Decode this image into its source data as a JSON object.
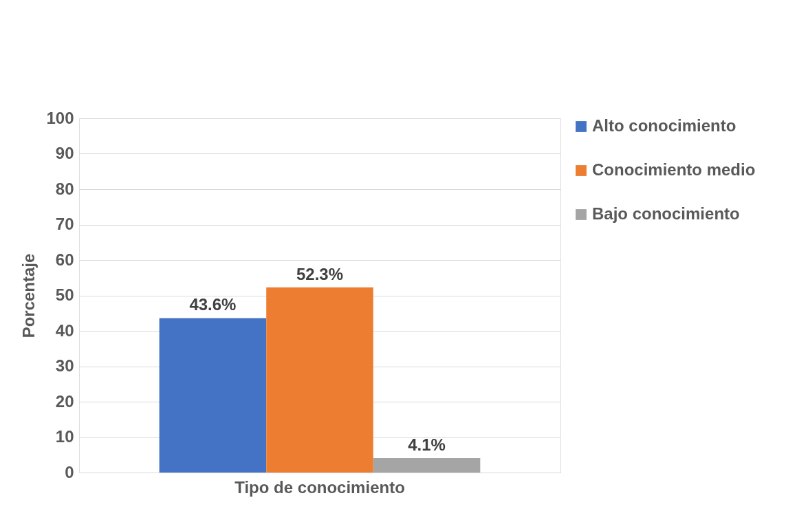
{
  "chart_data": {
    "type": "bar",
    "ylabel": "Porcentaje",
    "categories": [
      "Tipo de conocimiento"
    ],
    "series": [
      {
        "name": "Alto conocimiento",
        "color": "#4472c4",
        "values": [
          43.6
        ],
        "value_labels": [
          "43.6%"
        ]
      },
      {
        "name": "Conocimiento medio",
        "color": "#ed7d31",
        "values": [
          52.3
        ],
        "value_labels": [
          "52.3%"
        ]
      },
      {
        "name": "Bajo conocimiento",
        "color": "#a5a5a5",
        "values": [
          4.1
        ],
        "value_labels": [
          "4.1%"
        ]
      }
    ],
    "ylim": [
      0,
      100
    ],
    "yticks": [
      0,
      10,
      20,
      30,
      40,
      50,
      60,
      70,
      80,
      90,
      100
    ],
    "grid": "y",
    "legend": "right"
  }
}
